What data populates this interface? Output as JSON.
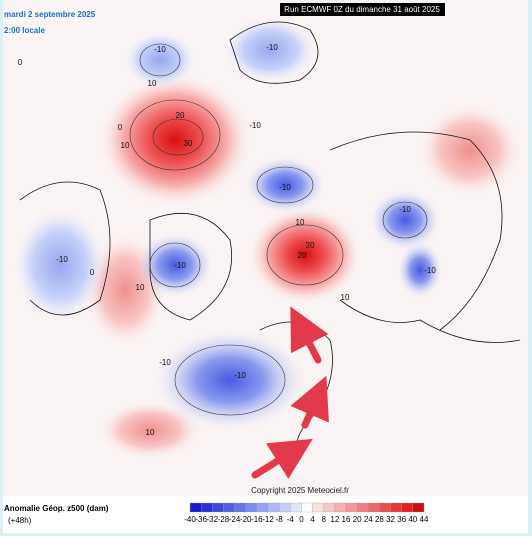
{
  "header": {
    "date": "mardi 2 septembre 2025",
    "time": "2:00 locale",
    "run": "Run ECMWF 0Z du dimanche 31 août 2025"
  },
  "map": {
    "contour_labels": [
      "-10",
      "10",
      "20",
      "30",
      "-10",
      "10",
      "0",
      "-10",
      "10",
      "20",
      "20",
      "-10",
      "-10",
      "-10",
      "-10",
      "10",
      "10",
      "-10",
      "-10",
      "-10",
      "0",
      "10",
      "0"
    ]
  },
  "footer": {
    "title": "Anomalie Géop. z500 (dam)",
    "lead": "(+48h)",
    "copyright": "Copyright 2025 Meteociel.fr"
  },
  "colorbar": {
    "labels": [
      -40,
      -36,
      -32,
      -28,
      -24,
      -20,
      -16,
      -12,
      -8,
      -4,
      0,
      4,
      8,
      12,
      16,
      20,
      24,
      28,
      32,
      36,
      40,
      44
    ],
    "colors": [
      "#1a1ad0",
      "#2a30d8",
      "#3c48e0",
      "#5060e6",
      "#6478ea",
      "#7c8eee",
      "#95a4f2",
      "#aebaf5",
      "#c6d0f8",
      "#e0e6fb",
      "#ffffff",
      "#fbe0e0",
      "#f8c8c8",
      "#f5b0b0",
      "#f29898",
      "#ef8080",
      "#ec6868",
      "#e85050",
      "#e43838",
      "#dc2222",
      "#cc1010"
    ]
  }
}
